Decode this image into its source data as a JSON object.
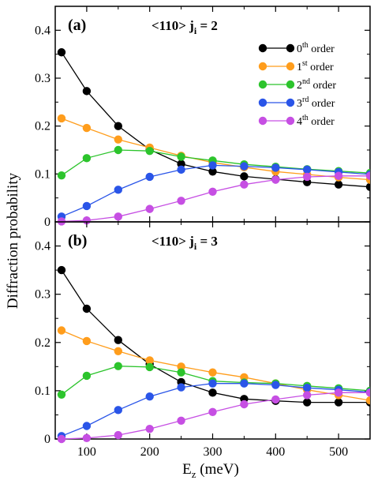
{
  "chart_data": {
    "type": "line",
    "ylabel": "Diffraction probability",
    "xlabel_main": "E",
    "xlabel_sub": "z",
    "xlabel_unit": " (meV)",
    "xlim": [
      50,
      550
    ],
    "x_ticks": [
      "100",
      "200",
      "300",
      "400",
      "500"
    ],
    "x_tick_values": [
      100,
      200,
      300,
      400,
      500
    ],
    "grid": false,
    "colors": {
      "0": "#000000",
      "1": "#ff9d1c",
      "2": "#2cc42c",
      "3": "#2a55e8",
      "4": "#c64fe3"
    },
    "x": [
      60,
      100,
      150,
      200,
      250,
      300,
      350,
      400,
      450,
      500,
      550
    ],
    "panels": [
      {
        "tag": "(a)",
        "title_main": "<110>   j",
        "title_sub": "i",
        "title_tail": " = 2",
        "ylim": [
          0,
          0.45
        ],
        "y_ticks": [
          "0",
          "0.1",
          "0.2",
          "0.3",
          "0.4"
        ],
        "y_tick_values": [
          0,
          0.1,
          0.2,
          0.3,
          0.4
        ],
        "legend_position": "top-right",
        "series": [
          {
            "key": "0",
            "label_num": "0",
            "label_sup": "th",
            "label_tail": " order",
            "values": [
              0.354,
              0.273,
              0.2,
              0.151,
              0.121,
              0.105,
              0.095,
              0.089,
              0.083,
              0.078,
              0.073
            ]
          },
          {
            "key": "1",
            "label_num": "1",
            "label_sup": "st",
            "label_tail": " order",
            "values": [
              0.216,
              0.196,
              0.172,
              0.155,
              0.138,
              0.124,
              0.114,
              0.105,
              0.099,
              0.093,
              0.088
            ]
          },
          {
            "key": "2",
            "label_num": "2",
            "label_sup": "nd",
            "label_tail": " order",
            "values": [
              0.097,
              0.133,
              0.15,
              0.148,
              0.136,
              0.128,
              0.12,
              0.115,
              0.11,
              0.106,
              0.102
            ]
          },
          {
            "key": "3",
            "label_num": "3",
            "label_sup": "rd",
            "label_tail": " order",
            "values": [
              0.011,
              0.033,
              0.067,
              0.094,
              0.109,
              0.118,
              0.116,
              0.113,
              0.109,
              0.104,
              0.099
            ]
          },
          {
            "key": "4",
            "label_num": "4",
            "label_sup": "th",
            "label_tail": " order",
            "values": [
              0.001,
              0.003,
              0.011,
              0.027,
              0.044,
              0.063,
              0.078,
              0.088,
              0.094,
              0.096,
              0.096
            ]
          }
        ]
      },
      {
        "tag": "(b)",
        "title_main": "<110>   j",
        "title_sub": "i",
        "title_tail": " = 3",
        "ylim": [
          0,
          0.45
        ],
        "y_ticks": [
          "0",
          "0.1",
          "0.2",
          "0.3",
          "0.4"
        ],
        "y_tick_values": [
          0,
          0.1,
          0.2,
          0.3,
          0.4
        ],
        "legend_position": "none",
        "series": [
          {
            "key": "0",
            "values": [
              0.35,
              0.27,
              0.205,
              0.155,
              0.118,
              0.096,
              0.083,
              0.079,
              0.076,
              0.076,
              0.076
            ]
          },
          {
            "key": "1",
            "values": [
              0.225,
              0.203,
              0.182,
              0.163,
              0.15,
              0.138,
              0.128,
              0.115,
              0.102,
              0.091,
              0.08
            ]
          },
          {
            "key": "2",
            "values": [
              0.092,
              0.131,
              0.151,
              0.149,
              0.138,
              0.12,
              0.117,
              0.115,
              0.11,
              0.105,
              0.1
            ]
          },
          {
            "key": "3",
            "values": [
              0.006,
              0.027,
              0.06,
              0.088,
              0.107,
              0.115,
              0.115,
              0.112,
              0.106,
              0.102,
              0.097
            ]
          },
          {
            "key": "4",
            "values": [
              0.0,
              0.002,
              0.008,
              0.021,
              0.038,
              0.056,
              0.072,
              0.082,
              0.091,
              0.096,
              0.096
            ]
          }
        ]
      }
    ]
  }
}
